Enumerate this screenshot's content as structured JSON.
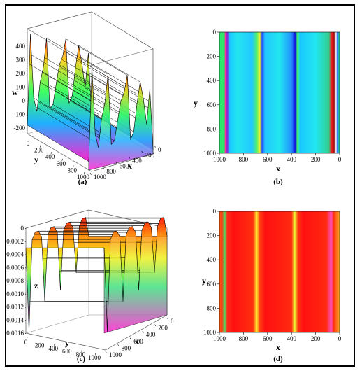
{
  "chart_data": [
    {
      "panel": "a",
      "type": "surface3d",
      "caption": "(a)",
      "zlabel": "w",
      "ylabel": "y",
      "xlabel": "x",
      "z_ticks": [
        "400",
        "300",
        "200",
        "100",
        "0",
        "-100",
        "-200"
      ],
      "y_ticks": [
        "0",
        "200",
        "400",
        "600",
        "800",
        "1000"
      ],
      "x_ticks": [
        "1000",
        "800",
        "600",
        "400",
        "200",
        "0"
      ],
      "zlim": [
        -280,
        460
      ],
      "xlim": [
        0,
        1000
      ],
      "ylim": [
        0,
        1000
      ],
      "colormap": "hue",
      "profile_x": [
        0,
        50,
        100,
        150,
        200,
        250,
        300,
        350,
        400,
        450,
        500,
        550,
        600,
        650,
        700,
        750,
        800,
        850,
        900,
        950,
        1000
      ],
      "profile_w": [
        -220,
        420,
        -40,
        -140,
        60,
        160,
        360,
        -140,
        -120,
        20,
        150,
        200,
        320,
        -140,
        -90,
        100,
        250,
        120,
        -60,
        180,
        -250
      ]
    },
    {
      "panel": "b",
      "type": "heatmap",
      "caption": "(b)",
      "xlabel": "x",
      "ylabel": "y",
      "x_ticks": [
        "1000",
        "800",
        "600",
        "400",
        "200",
        "0"
      ],
      "y_ticks": [
        "0",
        "200",
        "400",
        "600",
        "800",
        "1000"
      ],
      "xlim": [
        1000,
        0
      ],
      "ylim": [
        0,
        1000
      ],
      "colormap": "hue",
      "bands": [
        {
          "x": 1000,
          "color": "#2ee86a"
        },
        {
          "x": 960,
          "color": "#2ee86a"
        },
        {
          "x": 950,
          "color": "#ff2aa0"
        },
        {
          "x": 935,
          "color": "#8a1fd6"
        },
        {
          "x": 915,
          "color": "#1ac8ff"
        },
        {
          "x": 850,
          "color": "#22e6f0"
        },
        {
          "x": 730,
          "color": "#22c8ff"
        },
        {
          "x": 690,
          "color": "#4cf076"
        },
        {
          "x": 665,
          "color": "#f6f02a"
        },
        {
          "x": 645,
          "color": "#2050ff"
        },
        {
          "x": 620,
          "color": "#22c8ff"
        },
        {
          "x": 500,
          "color": "#22e6f0"
        },
        {
          "x": 400,
          "color": "#2290ff"
        },
        {
          "x": 370,
          "color": "#1010d8"
        },
        {
          "x": 350,
          "color": "#40ff70"
        },
        {
          "x": 330,
          "color": "#1ac8ff"
        },
        {
          "x": 200,
          "color": "#22e6f0"
        },
        {
          "x": 90,
          "color": "#30d090"
        },
        {
          "x": 65,
          "color": "#f01818"
        },
        {
          "x": 45,
          "color": "#a01818"
        },
        {
          "x": 30,
          "color": "#ffffff"
        },
        {
          "x": 18,
          "color": "#1060ff"
        },
        {
          "x": 0,
          "color": "#30ff80"
        }
      ]
    },
    {
      "panel": "c",
      "type": "surface3d",
      "caption": "(c)",
      "zlabel": "z",
      "ylabel": "y",
      "xlabel": "x",
      "z_ticks": [
        "0",
        "-0.0002",
        "-0.0004",
        "-0.0006",
        "-0.0008",
        "-0.0010",
        "-0.0012",
        "-0.0014",
        "-0.0016"
      ],
      "y_ticks": [
        "0",
        "200",
        "400",
        "600",
        "800",
        "1000"
      ],
      "x_ticks": [
        "1000",
        "800",
        "600",
        "400",
        "200",
        "0"
      ],
      "zlim": [
        -0.0016,
        0
      ],
      "xlim": [
        0,
        1000
      ],
      "ylim": [
        0,
        1000
      ],
      "colormap": "hue",
      "profile_x": [
        0,
        50,
        100,
        150,
        200,
        250,
        300,
        350,
        400,
        450,
        500,
        550,
        600,
        650,
        700,
        750,
        800,
        850,
        900,
        950,
        1000
      ],
      "profile_z": [
        -0.0003,
        -0.0016,
        -0.0002,
        -0.0001,
        -0.0001,
        -0.0002,
        -0.0012,
        -0.0002,
        -0.0001,
        -0.0001,
        -0.0002,
        -0.0011,
        -0.0002,
        -0.0001,
        -0.0001,
        -0.0002,
        -0.0009,
        -0.0002,
        -0.0001,
        -0.0001,
        -0.0004
      ]
    },
    {
      "panel": "d",
      "type": "heatmap",
      "caption": "(d)",
      "xlabel": "x",
      "ylabel": "y",
      "x_ticks": [
        "1000",
        "800",
        "600",
        "400",
        "200",
        "0"
      ],
      "y_ticks": [
        "0",
        "200",
        "400",
        "600",
        "800",
        "1000"
      ],
      "xlim": [
        1000,
        0
      ],
      "ylim": [
        0,
        1000
      ],
      "colormap": "hue",
      "bands": [
        {
          "x": 1000,
          "color": "#ff5a10"
        },
        {
          "x": 980,
          "color": "#ff3a10"
        },
        {
          "x": 955,
          "color": "#50d860"
        },
        {
          "x": 935,
          "color": "#ff2a18"
        },
        {
          "x": 880,
          "color": "#ff1010"
        },
        {
          "x": 720,
          "color": "#ff3010"
        },
        {
          "x": 690,
          "color": "#ffe830"
        },
        {
          "x": 665,
          "color": "#ff4010"
        },
        {
          "x": 620,
          "color": "#ff1010"
        },
        {
          "x": 400,
          "color": "#ff2a10"
        },
        {
          "x": 375,
          "color": "#e8ff30"
        },
        {
          "x": 345,
          "color": "#ff3010"
        },
        {
          "x": 300,
          "color": "#ff1010"
        },
        {
          "x": 110,
          "color": "#ff2a10"
        },
        {
          "x": 70,
          "color": "#ff50c0"
        },
        {
          "x": 50,
          "color": "#ff3010"
        },
        {
          "x": 20,
          "color": "#ff7a20"
        },
        {
          "x": 0,
          "color": "#ffb030"
        }
      ]
    }
  ]
}
